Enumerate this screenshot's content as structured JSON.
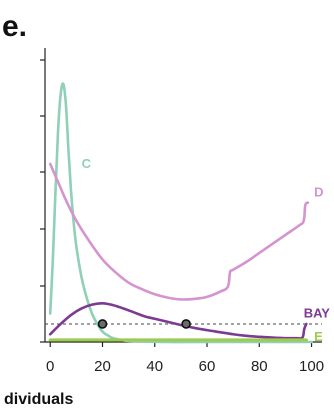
{
  "panel_label": "e.",
  "chart_data": {
    "type": "line",
    "xlabel": "dividuals",
    "ylabel": "",
    "xlim": [
      -2,
      104
    ],
    "ylim": [
      0,
      100
    ],
    "x_ticks": [
      0,
      20,
      40,
      60,
      80,
      100
    ],
    "x_tick_labels": [
      "0",
      "20",
      "40",
      "60",
      "80",
      "100"
    ],
    "y_tick_count": 6,
    "threshold": {
      "y": 7,
      "style": "dashed",
      "color": "#444444"
    },
    "grid": false,
    "series": [
      {
        "name": "C",
        "color": "#8fd0b6",
        "width": 2.6,
        "label_at": [
          12,
          69
        ],
        "x": [
          0,
          1,
          2,
          3,
          4,
          5,
          6,
          7,
          8,
          9,
          10,
          12,
          14,
          16,
          18,
          20,
          22,
          24,
          27,
          30,
          35,
          45,
          60,
          80,
          100
        ],
        "y": [
          11,
          32,
          58,
          82,
          96,
          100,
          92,
          74,
          58,
          46,
          37,
          25,
          17,
          11,
          7,
          4,
          2.6,
          1.5,
          0.8,
          0.4,
          0.2,
          0,
          0,
          0,
          0
        ]
      },
      {
        "name": "D",
        "color": "#d494cf",
        "width": 2.6,
        "label_at": [
          101,
          58
        ],
        "x": [
          0,
          3,
          6,
          10,
          15,
          20,
          25,
          30,
          35,
          40,
          45,
          50,
          55,
          60,
          65,
          68,
          68.8,
          70,
          75,
          80,
          85,
          90,
          95,
          97,
          97.6,
          98.6
        ],
        "y": [
          69,
          62,
          55,
          47,
          39,
          32,
          27,
          23,
          20.5,
          18.5,
          17.2,
          16.5,
          16.7,
          17.5,
          19.5,
          21.5,
          27,
          28,
          31,
          34.5,
          38,
          41.5,
          45,
          47,
          53,
          54
        ]
      },
      {
        "name": "BAY",
        "color": "#7c3b92",
        "width": 2.6,
        "label_at": [
          97,
          11
        ],
        "x": [
          0,
          4,
          8,
          12,
          16,
          20,
          24,
          28,
          32,
          36,
          40,
          45,
          50,
          55,
          60,
          65,
          70,
          75,
          80,
          85,
          90,
          94,
          96.5,
          97.2,
          98
        ],
        "y": [
          3,
          7,
          10.5,
          13,
          14.5,
          15,
          14.3,
          13,
          11.5,
          10,
          9,
          7.8,
          6.6,
          5.5,
          4.6,
          3.8,
          3,
          2.4,
          2,
          1.7,
          1.5,
          1.5,
          1.7,
          5,
          7
        ]
      },
      {
        "name": "E",
        "color": "#9ccc4f",
        "width": 3.2,
        "label_at": [
          101,
          2
        ],
        "x": [
          0,
          20,
          40,
          60,
          80,
          98
        ],
        "y": [
          0.8,
          0.8,
          0.8,
          0.8,
          0.8,
          0.8
        ]
      }
    ],
    "markers": [
      {
        "x": 20,
        "y": 7
      },
      {
        "x": 52,
        "y": 7
      }
    ]
  }
}
